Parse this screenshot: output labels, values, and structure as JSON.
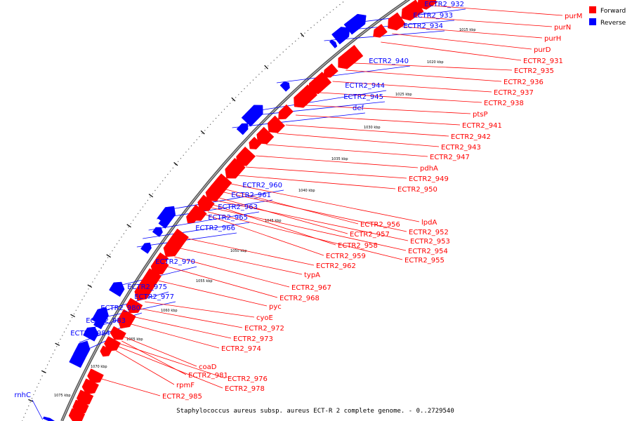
{
  "caption": "Staphylococcus aureus subsp. aureus ECT-R 2 complete genome. - 0..2729540",
  "colors": {
    "forward": "#ff0000",
    "reverse": "#0000ff",
    "backbone": "#888888"
  },
  "legend": {
    "forward_label": "Forward",
    "reverse_label": "Reverse"
  },
  "ticks": [
    "1015 kbp",
    "1020 kbp",
    "1025 kbp",
    "1030 kbp",
    "1035 kbp",
    "1040 kbp",
    "1045 kbp",
    "1050 kbp",
    "1055 kbp",
    "1060 kbp",
    "1065 kbp",
    "1070 kbp",
    "1075 kbp"
  ],
  "reverse_labels": [
    "ECTR2_932",
    "ECTR2_933",
    "ECTR2_934",
    "ECTR2_940",
    "ECTR2_944",
    "ECTR2_945",
    "def",
    "ECTR2_960",
    "ECTR2_961",
    "ECTR2_963",
    "ECTR2_965",
    "ECTR2_966",
    "ECTR2_970",
    "ECTR2_975",
    "ECTR2_977",
    "ECTR2_980",
    "ECTR2_983",
    "ECTR2_984",
    "rnhC"
  ],
  "forward_labels": [
    "purM",
    "purN",
    "purH",
    "purD",
    "ECTR2_931",
    "ECTR2_935",
    "ECTR2_936",
    "ECTR2_937",
    "ECTR2_938",
    "ptsP",
    "ECTR2_941",
    "ECTR2_942",
    "ECTR2_943",
    "ECTR2_947",
    "pdhA",
    "ECTR2_949",
    "ECTR2_950",
    "lpdA",
    "ECTR2_956",
    "ECTR2_952",
    "ECTR2_957",
    "ECTR2_953",
    "ECTR2_958",
    "ECTR2_954",
    "ECTR2_959",
    "ECTR2_955",
    "ECTR2_962",
    "typA",
    "ECTR2_967",
    "ECTR2_968",
    "pyc",
    "cyoE",
    "ECTR2_972",
    "ECTR2_973",
    "ECTR2_974",
    "coaD",
    "ECTR2_981",
    "ECTR2_976",
    "ECTR2_978",
    "rpmF",
    "ECTR2_985"
  ]
}
